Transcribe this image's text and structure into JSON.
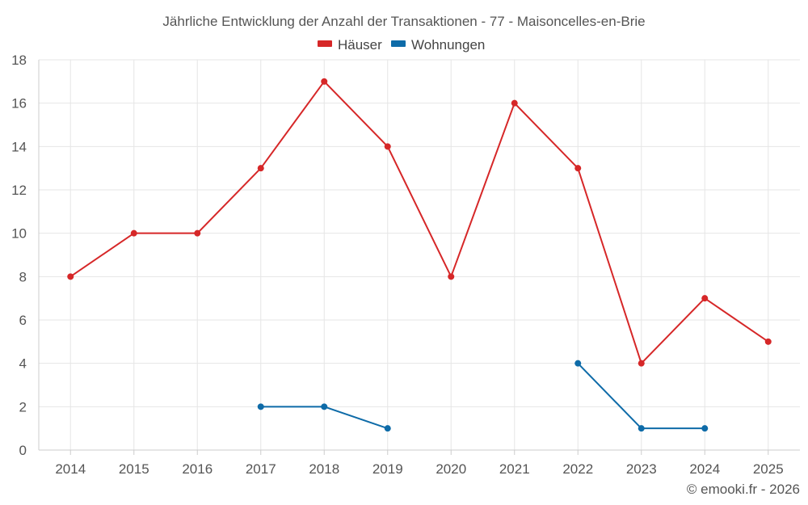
{
  "chart_data": {
    "type": "line",
    "title": "Jährliche Entwicklung der Anzahl der Transaktionen - 77 - Maisoncelles-en-Brie",
    "categories": [
      "2014",
      "2015",
      "2016",
      "2017",
      "2018",
      "2019",
      "2020",
      "2021",
      "2022",
      "2023",
      "2024",
      "2025"
    ],
    "series": [
      {
        "name": "Häuser",
        "color": "#d62728",
        "values": [
          8,
          10,
          10,
          13,
          17,
          14,
          8,
          16,
          13,
          4,
          7,
          5
        ]
      },
      {
        "name": "Wohnungen",
        "color": "#0e6ba8",
        "values": [
          null,
          null,
          null,
          2,
          2,
          1,
          null,
          null,
          4,
          1,
          1,
          null
        ]
      }
    ],
    "y_ticks": [
      0,
      2,
      4,
      6,
      8,
      10,
      12,
      14,
      16,
      18
    ],
    "ylim": [
      0,
      18
    ],
    "xlabel": "",
    "ylabel": "",
    "grid": true,
    "legend_position": "top-center"
  },
  "footer": {
    "credit": "© emooki.fr - 2026"
  }
}
